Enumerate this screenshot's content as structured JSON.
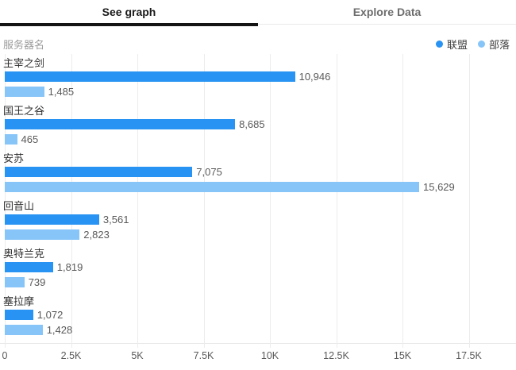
{
  "tabs": [
    {
      "label": "See graph",
      "active": true
    },
    {
      "label": "Explore Data",
      "active": false
    }
  ],
  "chart": {
    "axis_title": "服务器名",
    "legend": [
      {
        "label": "联盟",
        "color": "#2893f2"
      },
      {
        "label": "部落",
        "color": "#87c5f8"
      }
    ]
  },
  "chart_data": {
    "type": "bar",
    "orientation": "horizontal",
    "title": "",
    "xlabel": "",
    "ylabel": "服务器名",
    "categories": [
      "主宰之剑",
      "国王之谷",
      "安苏",
      "回音山",
      "奥特兰克",
      "塞拉摩"
    ],
    "series": [
      {
        "name": "联盟",
        "color": "#2893f2",
        "values": [
          10946,
          8685,
          7075,
          3561,
          1819,
          1072
        ],
        "labels": [
          "10,946",
          "8,685",
          "7,075",
          "3,561",
          "1,819",
          "1,072"
        ]
      },
      {
        "name": "部落",
        "color": "#87c5f8",
        "values": [
          1485,
          465,
          15629,
          2823,
          739,
          1428
        ],
        "labels": [
          "1,485",
          "465",
          "15,629",
          "2,823",
          "739",
          "1,428"
        ]
      }
    ],
    "xlim": [
      0,
      17500
    ],
    "x_ticks": [
      "0",
      "2.5K",
      "5K",
      "7.5K",
      "10K",
      "12.5K",
      "15K",
      "17.5K"
    ],
    "x_tick_values": [
      0,
      2500,
      5000,
      7500,
      10000,
      12500,
      15000,
      17500
    ],
    "grid": true,
    "legend_position": "top-right",
    "value_labels_shown": true
  }
}
